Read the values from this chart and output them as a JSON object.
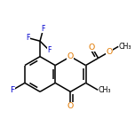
{
  "bg_color": "#ffffff",
  "bond_color": "#000000",
  "atom_colors": {
    "O": "#e07800",
    "F": "#0000cc",
    "C": "#000000"
  },
  "figsize": [
    1.52,
    1.52
  ],
  "dpi": 100,
  "line_width": 1.1,
  "font_size": 6.2,
  "bl": 0.155
}
